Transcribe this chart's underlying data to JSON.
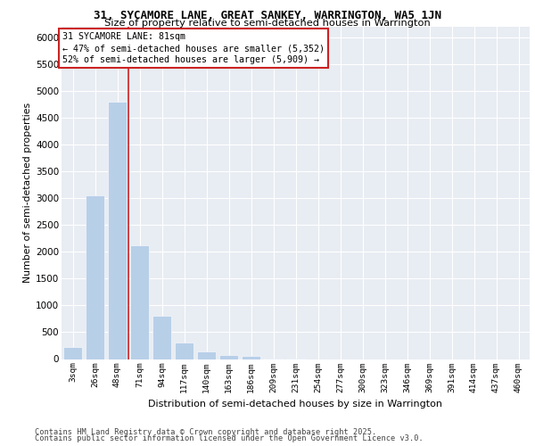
{
  "title1": "31, SYCAMORE LANE, GREAT SANKEY, WARRINGTON, WA5 1JN",
  "title2": "Size of property relative to semi-detached houses in Warrington",
  "xlabel": "Distribution of semi-detached houses by size in Warrington",
  "ylabel": "Number of semi-detached properties",
  "bar_labels": [
    "3sqm",
    "26sqm",
    "48sqm",
    "71sqm",
    "94sqm",
    "117sqm",
    "140sqm",
    "163sqm",
    "186sqm",
    "209sqm",
    "231sqm",
    "254sqm",
    "277sqm",
    "300sqm",
    "323sqm",
    "346sqm",
    "369sqm",
    "391sqm",
    "414sqm",
    "437sqm",
    "460sqm"
  ],
  "bar_values": [
    230,
    3050,
    4800,
    2130,
    800,
    300,
    140,
    70,
    55,
    5,
    5,
    0,
    0,
    0,
    0,
    0,
    0,
    0,
    0,
    0,
    0
  ],
  "bar_color": "#b8cfe8",
  "property_line_index": 2.5,
  "annotation_title": "31 SYCAMORE LANE: 81sqm",
  "annotation_line1": "← 47% of semi-detached houses are smaller (5,352)",
  "annotation_line2": "52% of semi-detached houses are larger (5,909) →",
  "ylim": [
    0,
    6200
  ],
  "yticks": [
    0,
    500,
    1000,
    1500,
    2000,
    2500,
    3000,
    3500,
    4000,
    4500,
    5000,
    5500,
    6000
  ],
  "bg_color": "#e8edf3",
  "footer1": "Contains HM Land Registry data © Crown copyright and database right 2025.",
  "footer2": "Contains public sector information licensed under the Open Government Licence v3.0."
}
